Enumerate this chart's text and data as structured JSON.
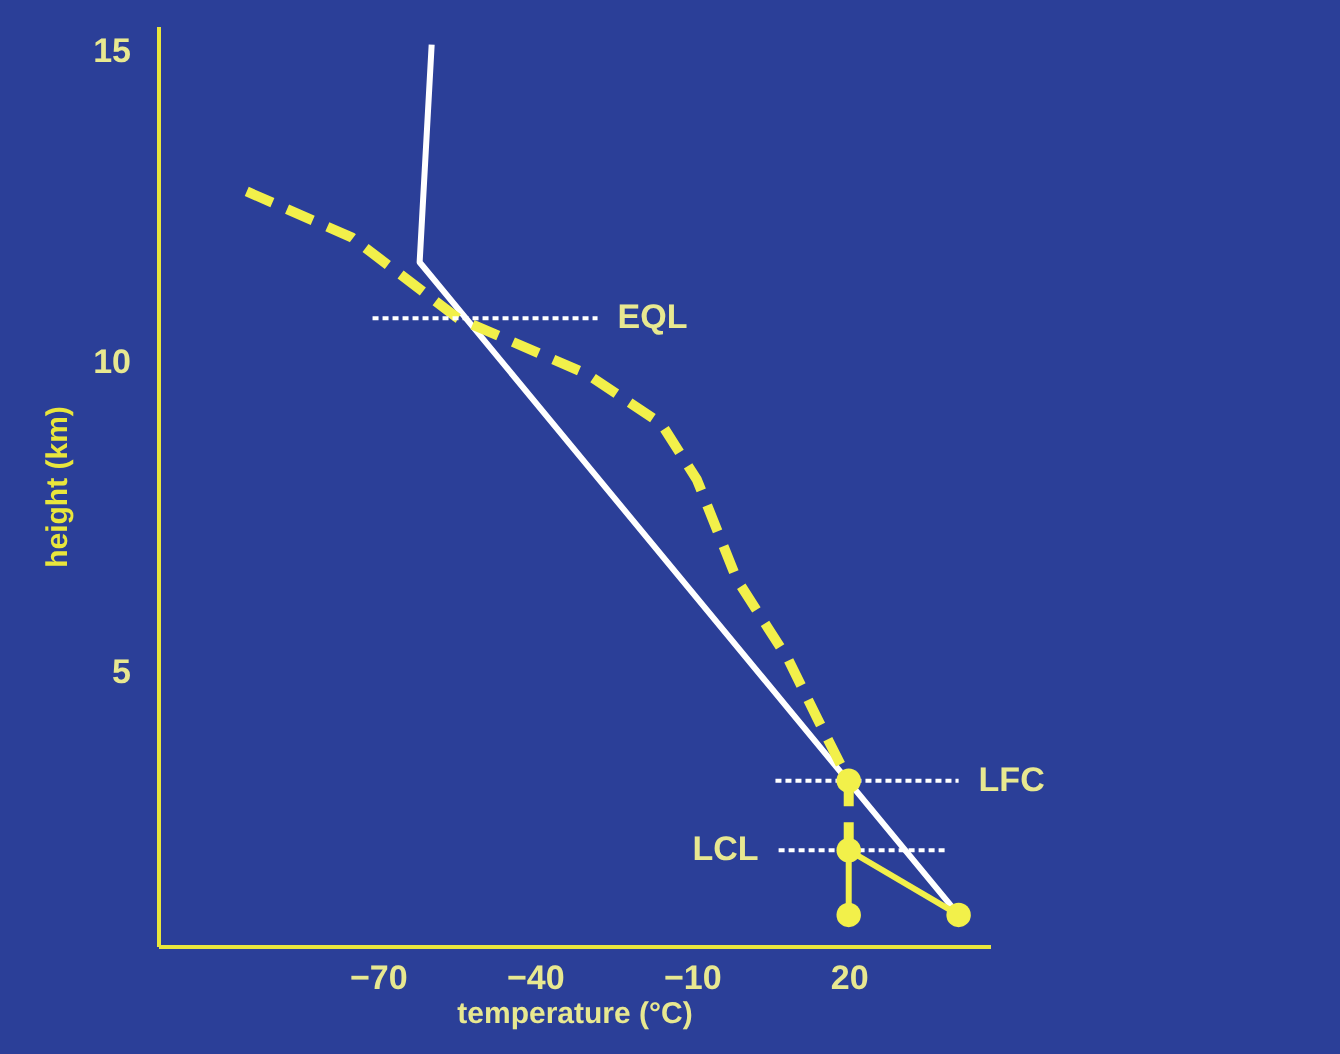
{
  "chart_data": {
    "type": "line",
    "xlabel": "temperature (°C)",
    "ylabel": "height (km)",
    "xlim": [
      -112,
      47
    ],
    "ylim": [
      0.6,
      15.4
    ],
    "xticks": [
      -70,
      -40,
      -10,
      20
    ],
    "yticks": [
      5,
      10,
      15
    ],
    "grid": false,
    "series": [
      {
        "color": "#ffffff",
        "line_style": "solid",
        "x": [
          -59.7,
          -62,
          41
        ],
        "values": [
          15.1,
          11.6,
          1.1
        ]
      },
      {
        "color": "#f2f04a",
        "line_style": "solid",
        "x": [
          41,
          20
        ],
        "values": [
          1.1,
          2.14
        ]
      },
      {
        "color": "#f2f04a",
        "line_style": "solid",
        "x": [
          20,
          20
        ],
        "values": [
          1.1,
          2.14
        ]
      },
      {
        "color": "#f2f04a",
        "line_style": "dashed",
        "x": [
          20,
          20,
          14,
          8.5,
          -1.4,
          -9,
          -15.8,
          -30,
          -54.7,
          -75,
          -96.7
        ],
        "values": [
          2.14,
          3.26,
          4.26,
          5.2,
          6.5,
          8.1,
          9.0,
          9.8,
          10.7,
          12.0,
          12.8
        ]
      },
      {
        "color": "#ffffff",
        "line_style": "dotted",
        "x": [
          -71,
          -28
        ],
        "values": [
          10.7,
          10.7
        ]
      },
      {
        "color": "#ffffff",
        "line_style": "dotted",
        "x": [
          6,
          41
        ],
        "values": [
          3.26,
          3.26
        ]
      },
      {
        "color": "#ffffff",
        "line_style": "dotted",
        "x": [
          6.6,
          39
        ],
        "values": [
          2.14,
          2.14
        ]
      },
      {
        "type": "scatter",
        "color": "#f2f04a",
        "marker": "circle",
        "x": [
          41,
          20,
          20,
          20
        ],
        "values": [
          1.1,
          1.1,
          2.14,
          3.26
        ]
      }
    ],
    "annotations": [
      {
        "text": "EQL",
        "x": -28,
        "y": 10.7
      },
      {
        "text": "LFC",
        "x": 41,
        "y": 3.26
      },
      {
        "text": "LCL",
        "x": 6.6,
        "y": 2.14
      }
    ]
  }
}
